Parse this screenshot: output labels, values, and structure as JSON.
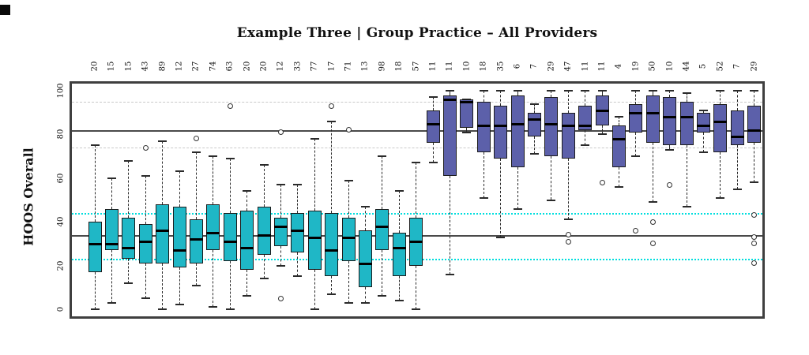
{
  "page": {
    "title": "Example Three | Group Practice – All Providers",
    "y_axis_title": "HOOS Overall"
  },
  "colors": {
    "group1_fill": "#1fb7c6",
    "group2_fill": "#5c60aa",
    "box_border": "#1c1c1c",
    "median": "#000000",
    "frame": "#3f3f3f",
    "ref_gray": "#c9c9c9",
    "ref_dark": "#4a4a4a",
    "ref_cyan": "#00dede"
  },
  "chart_data": {
    "type": "boxplot",
    "title": "Example Three | Group Practice – All Providers",
    "ylabel": "HOOS Overall",
    "ylim": [
      0,
      100
    ],
    "yticks": [
      0,
      20,
      40,
      60,
      80,
      100
    ],
    "grid": false,
    "legend": "none",
    "series": [
      {
        "name": "group-1-teal",
        "color": "#1fb7c6"
      },
      {
        "name": "group-2-indigo",
        "color": "#5c60aa"
      }
    ],
    "reference_lines": [
      {
        "value": 95,
        "style": "dashed",
        "color": "#c9c9c9"
      },
      {
        "value": 82,
        "style": "solid",
        "color": "#4a4a4a"
      },
      {
        "value": 74,
        "style": "dashed",
        "color": "#c9c9c9"
      },
      {
        "value": 44,
        "style": "dotted",
        "color": "#00dede"
      },
      {
        "value": 34,
        "style": "solid",
        "color": "#4a4a4a"
      },
      {
        "value": 23,
        "style": "dotted",
        "color": "#00dede"
      }
    ],
    "boxes": [
      {
        "n": 20,
        "series": 0,
        "low": 0,
        "q1": 17,
        "median": 30,
        "q3": 40,
        "high": 75,
        "outliers": []
      },
      {
        "n": 15,
        "series": 0,
        "low": 3,
        "q1": 27,
        "median": 30,
        "q3": 46,
        "high": 60,
        "outliers": []
      },
      {
        "n": 15,
        "series": 0,
        "low": 12,
        "q1": 23,
        "median": 28,
        "q3": 42,
        "high": 68,
        "outliers": []
      },
      {
        "n": 43,
        "series": 0,
        "low": 5,
        "q1": 21,
        "median": 31,
        "q3": 39,
        "high": 61,
        "outliers": [
          74
        ]
      },
      {
        "n": 89,
        "series": 0,
        "low": 0,
        "q1": 21,
        "median": 36,
        "q3": 48,
        "high": 77,
        "outliers": []
      },
      {
        "n": 12,
        "series": 0,
        "low": 2,
        "q1": 19,
        "median": 27,
        "q3": 47,
        "high": 63,
        "outliers": []
      },
      {
        "n": 27,
        "series": 0,
        "low": 11,
        "q1": 21,
        "median": 32,
        "q3": 41,
        "high": 72,
        "outliers": [
          78
        ]
      },
      {
        "n": 74,
        "series": 0,
        "low": 1,
        "q1": 27,
        "median": 35,
        "q3": 48,
        "high": 70,
        "outliers": []
      },
      {
        "n": 63,
        "series": 0,
        "low": 0,
        "q1": 22,
        "median": 31,
        "q3": 44,
        "high": 69,
        "outliers": [
          93
        ]
      },
      {
        "n": 20,
        "series": 0,
        "low": 6,
        "q1": 18,
        "median": 28,
        "q3": 45,
        "high": 54,
        "outliers": []
      },
      {
        "n": 20,
        "series": 0,
        "low": 14,
        "q1": 25,
        "median": 34,
        "q3": 47,
        "high": 66,
        "outliers": []
      },
      {
        "n": 12,
        "series": 0,
        "low": 20,
        "q1": 29,
        "median": 38,
        "q3": 42,
        "high": 57,
        "outliers": [
          81,
          5
        ]
      },
      {
        "n": 33,
        "series": 0,
        "low": 15,
        "q1": 26,
        "median": 36,
        "q3": 44,
        "high": 57,
        "outliers": []
      },
      {
        "n": 77,
        "series": 0,
        "low": 0,
        "q1": 18,
        "median": 33,
        "q3": 45,
        "high": 78,
        "outliers": []
      },
      {
        "n": 17,
        "series": 0,
        "low": 7,
        "q1": 15,
        "median": 27,
        "q3": 44,
        "high": 86,
        "outliers": [
          93
        ]
      },
      {
        "n": 71,
        "series": 0,
        "low": 3,
        "q1": 22,
        "median": 33,
        "q3": 42,
        "high": 59,
        "outliers": [
          82
        ]
      },
      {
        "n": 13,
        "series": 0,
        "low": 3,
        "q1": 10,
        "median": 21,
        "q3": 36,
        "high": 47,
        "outliers": []
      },
      {
        "n": 98,
        "series": 0,
        "low": 6,
        "q1": 27,
        "median": 38,
        "q3": 46,
        "high": 70,
        "outliers": []
      },
      {
        "n": 18,
        "series": 0,
        "low": 4,
        "q1": 15,
        "median": 28,
        "q3": 35,
        "high": 54,
        "outliers": []
      },
      {
        "n": 57,
        "series": 0,
        "low": 0,
        "q1": 20,
        "median": 31,
        "q3": 42,
        "high": 67,
        "outliers": []
      },
      {
        "n": 11,
        "series": 1,
        "low": 67,
        "q1": 76,
        "median": 85,
        "q3": 91,
        "high": 97,
        "outliers": []
      },
      {
        "n": 11,
        "series": 1,
        "low": 16,
        "q1": 61,
        "median": 96,
        "q3": 98,
        "high": 100,
        "outliers": []
      },
      {
        "n": 10,
        "series": 1,
        "low": 81,
        "q1": 83,
        "median": 95,
        "q3": 96,
        "high": 96,
        "outliers": []
      },
      {
        "n": 18,
        "series": 1,
        "low": 51,
        "q1": 72,
        "median": 84,
        "q3": 95,
        "high": 100,
        "outliers": []
      },
      {
        "n": 35,
        "series": 1,
        "low": 33,
        "q1": 69,
        "median": 84,
        "q3": 93,
        "high": 100,
        "outliers": []
      },
      {
        "n": 6,
        "series": 1,
        "low": 46,
        "q1": 65,
        "median": 85,
        "q3": 98,
        "high": 100,
        "outliers": []
      },
      {
        "n": 7,
        "series": 1,
        "low": 71,
        "q1": 79,
        "median": 87,
        "q3": 90,
        "high": 94,
        "outliers": []
      },
      {
        "n": 29,
        "series": 1,
        "low": 50,
        "q1": 70,
        "median": 85,
        "q3": 97,
        "high": 100,
        "outliers": []
      },
      {
        "n": 47,
        "series": 1,
        "low": 41,
        "q1": 69,
        "median": 84,
        "q3": 90,
        "high": 100,
        "outliers": [
          34,
          31
        ]
      },
      {
        "n": 11,
        "series": 1,
        "low": 75,
        "q1": 82,
        "median": 84,
        "q3": 93,
        "high": 100,
        "outliers": []
      },
      {
        "n": 11,
        "series": 1,
        "low": 80,
        "q1": 84,
        "median": 91,
        "q3": 98,
        "high": 100,
        "outliers": [
          58
        ]
      },
      {
        "n": 4,
        "series": 1,
        "low": 56,
        "q1": 65,
        "median": 78,
        "q3": 84,
        "high": 88,
        "outliers": []
      },
      {
        "n": 19,
        "series": 1,
        "low": 70,
        "q1": 81,
        "median": 90,
        "q3": 94,
        "high": 100,
        "outliers": [
          36
        ]
      },
      {
        "n": 50,
        "series": 1,
        "low": 49,
        "q1": 76,
        "median": 90,
        "q3": 98,
        "high": 100,
        "outliers": [
          40,
          30
        ]
      },
      {
        "n": 10,
        "series": 1,
        "low": 73,
        "q1": 75,
        "median": 88,
        "q3": 97,
        "high": 100,
        "outliers": [
          57
        ]
      },
      {
        "n": 44,
        "series": 1,
        "low": 47,
        "q1": 75,
        "median": 88,
        "q3": 95,
        "high": 99,
        "outliers": []
      },
      {
        "n": 5,
        "series": 1,
        "low": 72,
        "q1": 81,
        "median": 84,
        "q3": 90,
        "high": 91,
        "outliers": []
      },
      {
        "n": 52,
        "series": 1,
        "low": 51,
        "q1": 72,
        "median": 86,
        "q3": 94,
        "high": 100,
        "outliers": []
      },
      {
        "n": 7,
        "series": 1,
        "low": 55,
        "q1": 75,
        "median": 79,
        "q3": 91,
        "high": 100,
        "outliers": []
      },
      {
        "n": 29,
        "series": 1,
        "low": 58,
        "q1": 76,
        "median": 82,
        "q3": 93,
        "high": 100,
        "outliers": [
          43,
          33,
          30,
          21
        ]
      }
    ]
  }
}
